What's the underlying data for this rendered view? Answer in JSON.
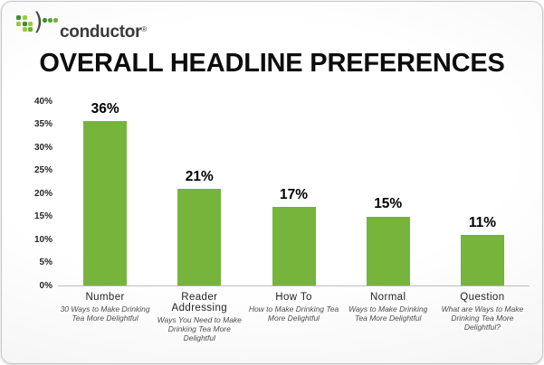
{
  "logo": {
    "brand": "conductor",
    "registered": "®",
    "icon_colors": {
      "grid": [
        "#3d8f36",
        "#9dc93d",
        "",
        "#9dc93d",
        "#3d8f36",
        "#9dc93d",
        "",
        "#9dc93d",
        "#6cb33f"
      ],
      "dots": [
        "#3d8f36",
        "#55a33a",
        "#6cb33f"
      ]
    }
  },
  "title": "OVERALL HEADLINE PREFERENCES",
  "chart_data": {
    "type": "bar",
    "title": "OVERALL HEADLINE PREFERENCES",
    "categories": [
      "Number",
      "Reader Addressing",
      "How To",
      "Normal",
      "Question"
    ],
    "category_examples": [
      "30 Ways to Make Drinking Tea More Delightful",
      "Ways You Need to Make Drinking Tea More Delightful",
      "How to Make Drinking Tea More Delightful",
      "Ways to Make Drinking Tea More Delightful",
      "What are Ways to Make Drinking Tea More Delightful?"
    ],
    "values": [
      36,
      21,
      17,
      15,
      11
    ],
    "value_labels": [
      "36%",
      "21%",
      "17%",
      "15%",
      "11%"
    ],
    "xlabel": "",
    "ylabel": "",
    "ylim": [
      0,
      40
    ],
    "y_ticks": [
      "0%",
      "5%",
      "10%",
      "15%",
      "20%",
      "25%",
      "30%",
      "35%",
      "40%"
    ],
    "grid": false,
    "legend": false,
    "bar_color": "#76b43c"
  }
}
